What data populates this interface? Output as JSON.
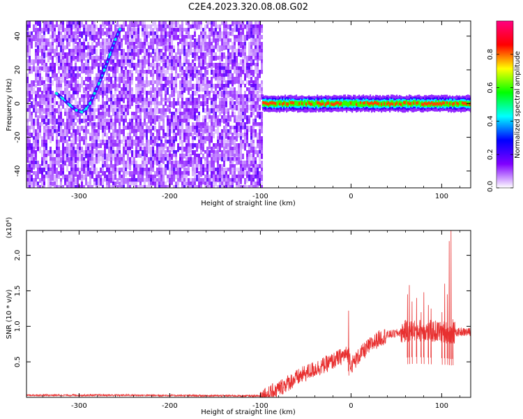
{
  "title": "C2E4.2023.320.08.08.G02",
  "chart_data": [
    {
      "type": "heatmap",
      "xlabel": "Height of straight line (km)",
      "ylabel": "Frequency (Hz)",
      "xlim": [
        -358,
        132
      ],
      "ylim": [
        -50,
        49
      ],
      "xticks": [
        -300,
        -200,
        -100,
        0,
        100
      ],
      "xtick_labels": [
        "-300",
        "-200",
        "-100",
        "0",
        "100"
      ],
      "yticks": [
        -40,
        -20,
        0,
        20,
        40
      ],
      "ytick_labels": [
        "-40",
        "-20",
        "0",
        "20",
        "40"
      ],
      "colorbar": {
        "label": "Normalized spectral amplitude",
        "range": [
          0,
          1
        ],
        "ticks": [
          0.0,
          0.2,
          0.4,
          0.6,
          0.8
        ],
        "tick_labels": [
          "0.0",
          "0.2",
          "0.4",
          "0.6",
          "0.8"
        ],
        "colors": [
          "#ffffff",
          "#8000ff",
          "#0000ff",
          "#00ffff",
          "#00ff00",
          "#ffff00",
          "#ff0000",
          "#ff0080"
        ]
      },
      "noise_region_x": [
        -358,
        -98
      ],
      "carrier_band": {
        "x": [
          -98,
          132
        ],
        "center_freq": 0,
        "half_width": 3
      },
      "tone_trace": {
        "x": [
          -325,
          -318,
          -310,
          -303,
          -297,
          -292,
          -288,
          -283,
          -278,
          -272,
          -266,
          -260,
          -255
        ],
        "y": [
          6,
          3,
          -1,
          -4,
          -5,
          -3,
          0,
          6,
          12,
          20,
          29,
          38,
          44
        ]
      }
    },
    {
      "type": "line",
      "xlabel": "Height of straight line (km)",
      "ylabel": "SNR (10 * v/v)",
      "y_multiplier": "(x10⁴)",
      "xlim": [
        -358,
        132
      ],
      "ylim": [
        0,
        2.35
      ],
      "xticks": [
        -300,
        -200,
        -100,
        0,
        100
      ],
      "xtick_labels": [
        "-300",
        "-200",
        "-100",
        "0",
        "100"
      ],
      "yticks": [
        0.5,
        1.0,
        1.5,
        2.0
      ],
      "ytick_labels": [
        "0.5",
        "1.0",
        "1.5",
        "2.0"
      ],
      "color": "#e83030",
      "envelope": {
        "x": [
          -358,
          -250,
          -100,
          -90,
          -80,
          -70,
          -60,
          -50,
          -40,
          -30,
          -20,
          -10,
          -2,
          0,
          10,
          20,
          30,
          40,
          50,
          60,
          70,
          80,
          90,
          100,
          105,
          110,
          115,
          120,
          132
        ],
        "y": [
          0.03,
          0.03,
          0.02,
          0.05,
          0.12,
          0.2,
          0.27,
          0.34,
          0.4,
          0.45,
          0.51,
          0.58,
          0.62,
          0.45,
          0.6,
          0.72,
          0.82,
          0.88,
          0.9,
          0.93,
          0.95,
          0.94,
          0.93,
          0.92,
          0.92,
          0.9,
          0.91,
          0.92,
          0.92
        ]
      },
      "spikes": {
        "x": [
          -3,
          62,
          64,
          67,
          72,
          77,
          80,
          85,
          88,
          100,
          103,
          106,
          108,
          110,
          112
        ],
        "y": [
          1.22,
          1.45,
          1.58,
          1.35,
          1.4,
          1.2,
          1.48,
          1.3,
          1.25,
          1.2,
          1.6,
          1.45,
          2.2,
          2.35,
          1.1
        ]
      }
    }
  ]
}
